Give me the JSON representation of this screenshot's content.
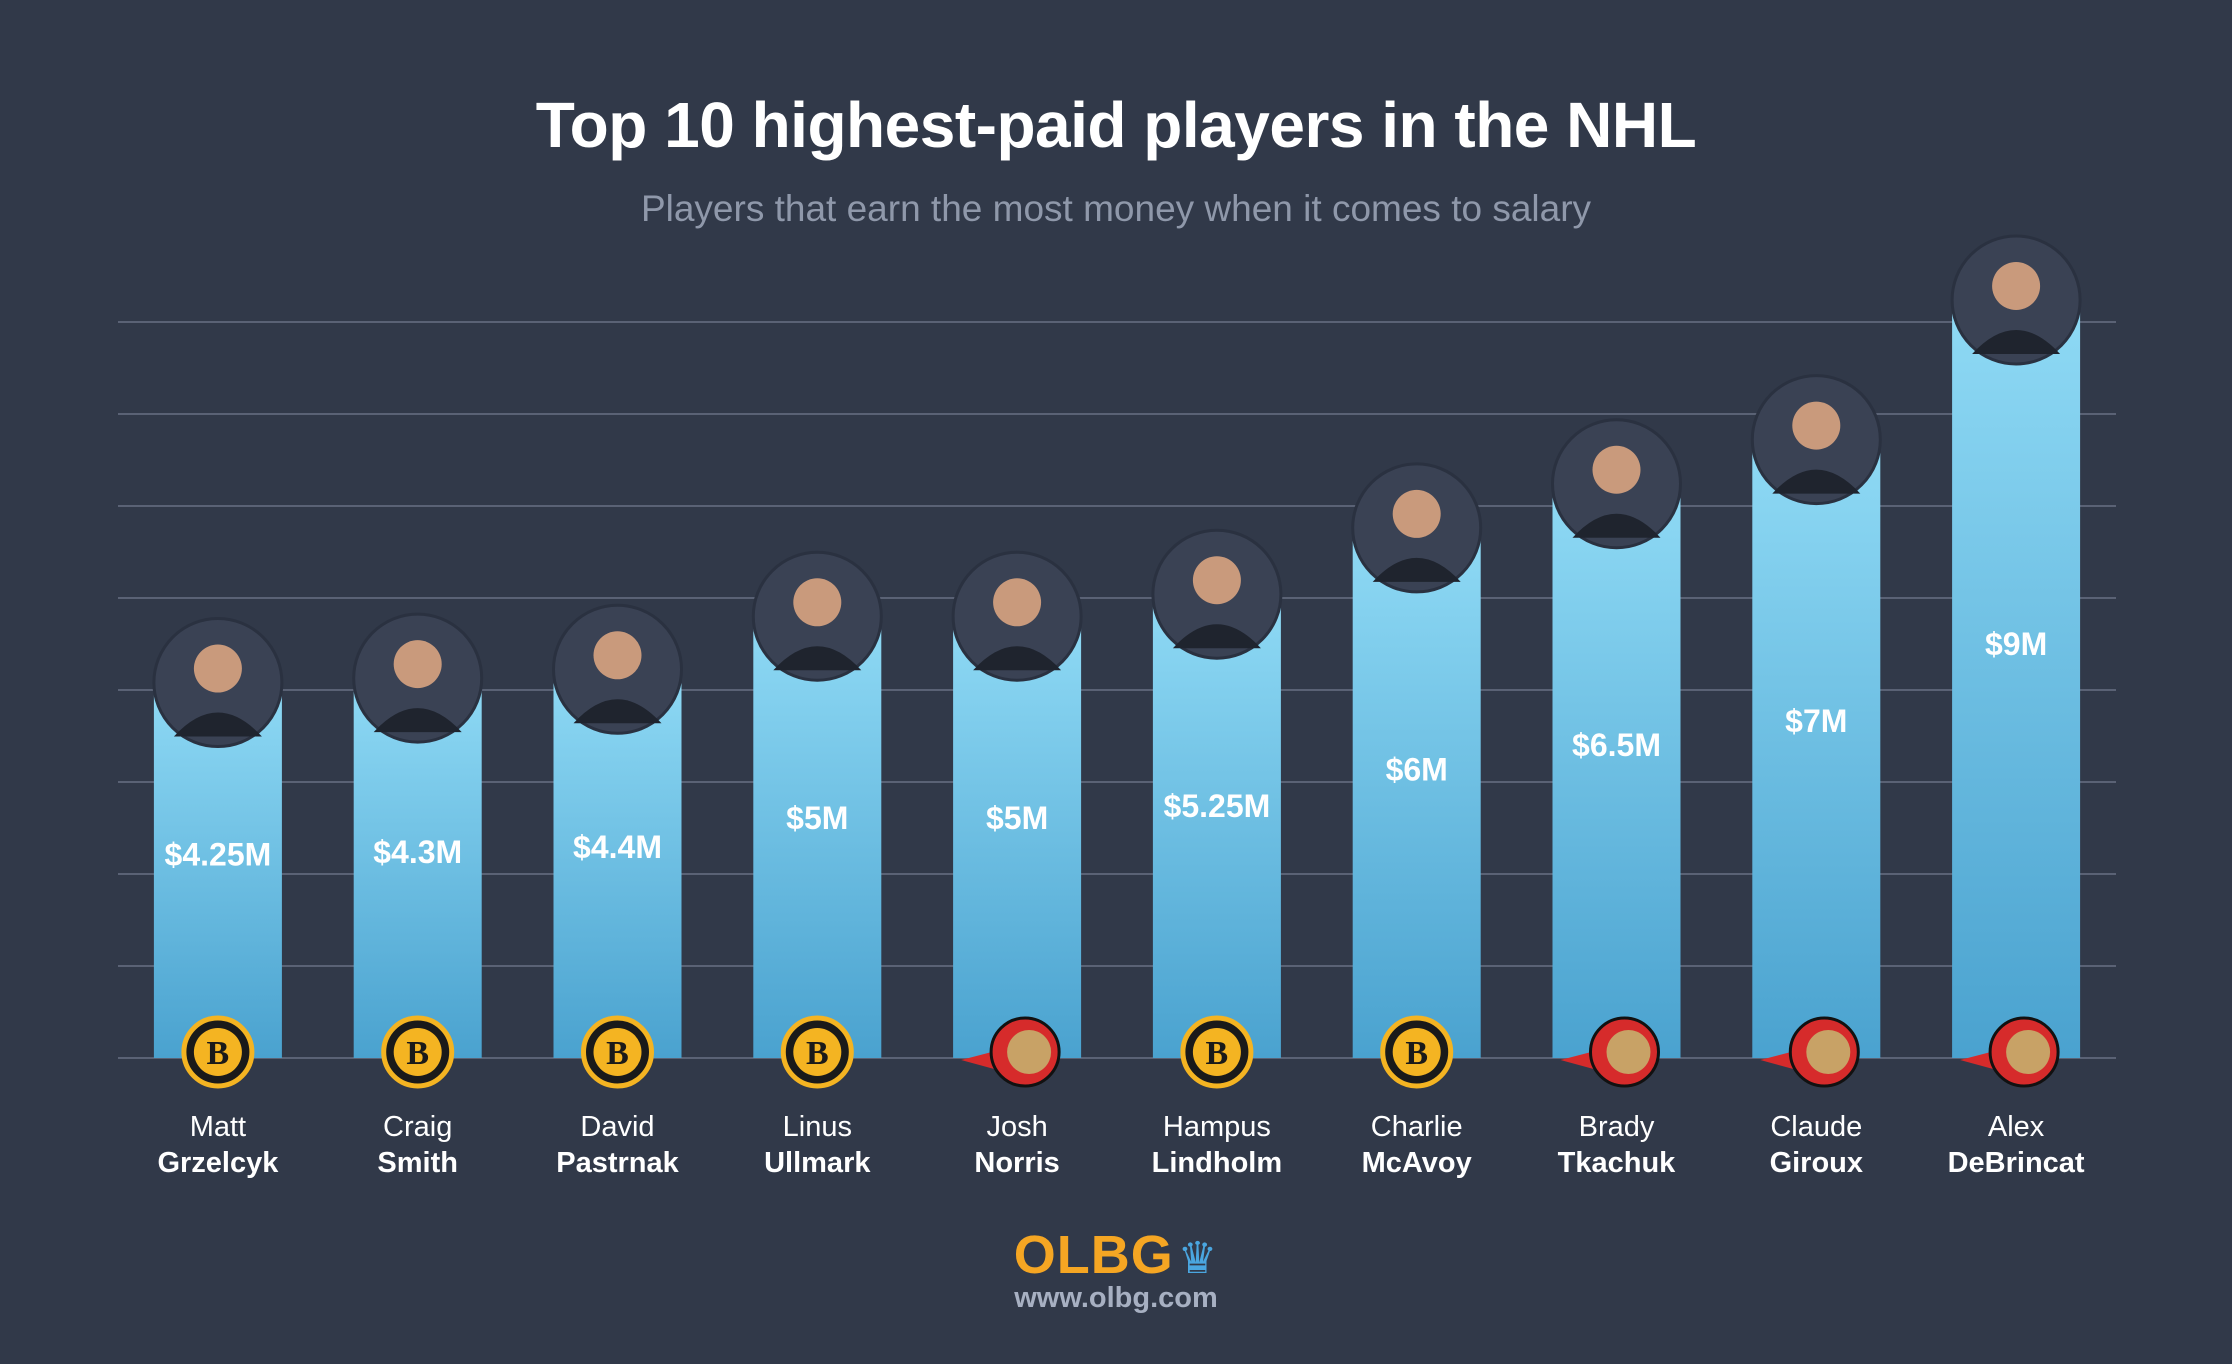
{
  "title": "Top 10 highest-paid players in the NHL",
  "subtitle": "Players that earn the most money when it comes to salary",
  "brand": {
    "logo_text": "OLBG",
    "crown_icon": "crown-icon",
    "url": "www.olbg.com"
  },
  "colors": {
    "background": "#313949",
    "bar": "#4aa2cf",
    "bar_highlight": "#8fdaf5",
    "gridline": "#5a6275",
    "bruins_black": "#1a1a1a",
    "bruins_gold": "#f4b422",
    "senators_red": "#d62b2b"
  },
  "chart_data": {
    "type": "bar",
    "title": "Top 10 highest-paid players in the NHL",
    "subtitle": "Players that earn the most money when it comes to salary",
    "xlabel": "",
    "ylabel": "",
    "ylim": [
      0,
      10
    ],
    "grid": true,
    "unit": "$M",
    "categories": [
      {
        "first": "Matt",
        "last": "Grzelcyk"
      },
      {
        "first": "Craig",
        "last": "Smith"
      },
      {
        "first": "David",
        "last": "Pastrnak"
      },
      {
        "first": "Linus",
        "last": "Ullmark"
      },
      {
        "first": "Josh",
        "last": "Norris"
      },
      {
        "first": "Hampus",
        "last": "Lindholm"
      },
      {
        "first": "Charlie",
        "last": "McAvoy"
      },
      {
        "first": "Brady",
        "last": "Tkachuk"
      },
      {
        "first": "Claude",
        "last": "Giroux"
      },
      {
        "first": "Alex",
        "last": "DeBrincat"
      }
    ],
    "values": [
      4.25,
      4.3,
      4.4,
      5,
      5,
      5.25,
      6,
      6.5,
      7,
      9
    ],
    "value_labels": [
      "$4.25M",
      "$4.3M",
      "$4.4M",
      "$5M",
      "$5M",
      "$5.25M",
      "$6M",
      "$6.5M",
      "$7M",
      "$9M"
    ],
    "team_icons": [
      "bruins-logo-icon",
      "bruins-logo-icon",
      "bruins-logo-icon",
      "bruins-logo-icon",
      "senators-logo-icon",
      "bruins-logo-icon",
      "bruins-logo-icon",
      "senators-logo-icon",
      "senators-logo-icon",
      "senators-logo-icon"
    ],
    "portrait_icons": [
      "player-portrait-icon",
      "player-portrait-icon",
      "player-portrait-icon",
      "player-portrait-icon",
      "player-portrait-icon",
      "player-portrait-icon",
      "player-portrait-icon",
      "player-portrait-icon",
      "player-portrait-icon",
      "player-portrait-icon"
    ]
  }
}
